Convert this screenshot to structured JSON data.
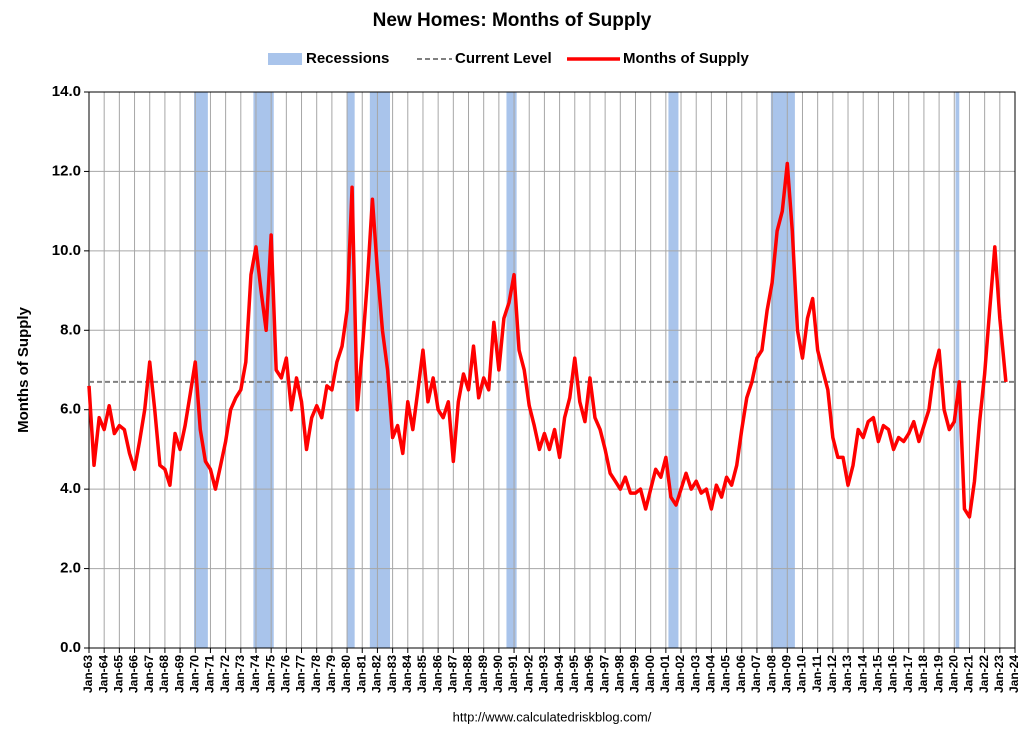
{
  "chart_data": {
    "type": "line",
    "title": "New Homes: Months of Supply",
    "y_label": "Months of Supply",
    "source": "http://www.calculatedriskblog.com/",
    "grid": true,
    "xlim": [
      1963,
      2024
    ],
    "ylim": [
      0,
      14
    ],
    "yticks": [
      {
        "value": 0,
        "label": "0.0"
      },
      {
        "value": 2,
        "label": "2.0"
      },
      {
        "value": 4,
        "label": "4.0"
      },
      {
        "value": 6,
        "label": "6.0"
      },
      {
        "value": 8,
        "label": "8.0"
      },
      {
        "value": 10,
        "label": "10.0"
      },
      {
        "value": 12,
        "label": "12.0"
      },
      {
        "value": 14,
        "label": "14.0"
      }
    ],
    "xticks": [
      {
        "value": 1963,
        "label": "Jan-63"
      },
      {
        "value": 1964,
        "label": "Jan-64"
      },
      {
        "value": 1965,
        "label": "Jan-65"
      },
      {
        "value": 1966,
        "label": "Jan-66"
      },
      {
        "value": 1967,
        "label": "Jan-67"
      },
      {
        "value": 1968,
        "label": "Jan-68"
      },
      {
        "value": 1969,
        "label": "Jan-69"
      },
      {
        "value": 1970,
        "label": "Jan-70"
      },
      {
        "value": 1971,
        "label": "Jan-71"
      },
      {
        "value": 1972,
        "label": "Jan-72"
      },
      {
        "value": 1973,
        "label": "Jan-73"
      },
      {
        "value": 1974,
        "label": "Jan-74"
      },
      {
        "value": 1975,
        "label": "Jan-75"
      },
      {
        "value": 1976,
        "label": "Jan-76"
      },
      {
        "value": 1977,
        "label": "Jan-77"
      },
      {
        "value": 1978,
        "label": "Jan-78"
      },
      {
        "value": 1979,
        "label": "Jan-79"
      },
      {
        "value": 1980,
        "label": "Jan-80"
      },
      {
        "value": 1981,
        "label": "Jan-81"
      },
      {
        "value": 1982,
        "label": "Jan-82"
      },
      {
        "value": 1983,
        "label": "Jan-83"
      },
      {
        "value": 1984,
        "label": "Jan-84"
      },
      {
        "value": 1985,
        "label": "Jan-85"
      },
      {
        "value": 1986,
        "label": "Jan-86"
      },
      {
        "value": 1987,
        "label": "Jan-87"
      },
      {
        "value": 1988,
        "label": "Jan-88"
      },
      {
        "value": 1989,
        "label": "Jan-89"
      },
      {
        "value": 1990,
        "label": "Jan-90"
      },
      {
        "value": 1991,
        "label": "Jan-91"
      },
      {
        "value": 1992,
        "label": "Jan-92"
      },
      {
        "value": 1993,
        "label": "Jan-93"
      },
      {
        "value": 1994,
        "label": "Jan-94"
      },
      {
        "value": 1995,
        "label": "Jan-95"
      },
      {
        "value": 1996,
        "label": "Jan-96"
      },
      {
        "value": 1997,
        "label": "Jan-97"
      },
      {
        "value": 1998,
        "label": "Jan-98"
      },
      {
        "value": 1999,
        "label": "Jan-99"
      },
      {
        "value": 2000,
        "label": "Jan-00"
      },
      {
        "value": 2001,
        "label": "Jan-01"
      },
      {
        "value": 2002,
        "label": "Jan-02"
      },
      {
        "value": 2003,
        "label": "Jan-03"
      },
      {
        "value": 2004,
        "label": "Jan-04"
      },
      {
        "value": 2005,
        "label": "Jan-05"
      },
      {
        "value": 2006,
        "label": "Jan-06"
      },
      {
        "value": 2007,
        "label": "Jan-07"
      },
      {
        "value": 2008,
        "label": "Jan-08"
      },
      {
        "value": 2009,
        "label": "Jan-09"
      },
      {
        "value": 2010,
        "label": "Jan-10"
      },
      {
        "value": 2011,
        "label": "Jan-11"
      },
      {
        "value": 2012,
        "label": "Jan-12"
      },
      {
        "value": 2013,
        "label": "Jan-13"
      },
      {
        "value": 2014,
        "label": "Jan-14"
      },
      {
        "value": 2015,
        "label": "Jan-15"
      },
      {
        "value": 2016,
        "label": "Jan-16"
      },
      {
        "value": 2017,
        "label": "Jan-17"
      },
      {
        "value": 2018,
        "label": "Jan-18"
      },
      {
        "value": 2019,
        "label": "Jan-19"
      },
      {
        "value": 2020,
        "label": "Jan-20"
      },
      {
        "value": 2021,
        "label": "Jan-21"
      },
      {
        "value": 2022,
        "label": "Jan-22"
      },
      {
        "value": 2023,
        "label": "Jan-23"
      },
      {
        "value": 2024,
        "label": "Jan-24"
      }
    ],
    "recessions": {
      "name": "Recessions",
      "color": "#a9c4eb",
      "periods": [
        [
          1969.92,
          1970.83
        ],
        [
          1973.83,
          1975.17
        ],
        [
          1980.0,
          1980.5
        ],
        [
          1981.5,
          1982.83
        ],
        [
          1990.5,
          1991.17
        ],
        [
          2001.17,
          2001.83
        ],
        [
          2007.92,
          2009.5
        ],
        [
          2020.08,
          2020.33
        ]
      ]
    },
    "current_level": {
      "name": "Current Level",
      "value": 6.7,
      "color": "#808080"
    },
    "series": [
      {
        "name": "Months of Supply",
        "color": "#ff0000",
        "x": [
          1963,
          1963.33,
          1963.67,
          1964,
          1964.33,
          1964.67,
          1965,
          1965.33,
          1965.67,
          1966,
          1966.33,
          1966.67,
          1967,
          1967.33,
          1967.67,
          1968,
          1968.33,
          1968.67,
          1969,
          1969.33,
          1969.67,
          1970,
          1970.33,
          1970.67,
          1971,
          1971.33,
          1971.67,
          1972,
          1972.33,
          1972.67,
          1973,
          1973.33,
          1973.67,
          1974,
          1974.33,
          1974.67,
          1975,
          1975.33,
          1975.67,
          1976,
          1976.33,
          1976.67,
          1977,
          1977.33,
          1977.67,
          1978,
          1978.33,
          1978.67,
          1979,
          1979.33,
          1979.67,
          1980,
          1980.33,
          1980.67,
          1981,
          1981.33,
          1981.67,
          1982,
          1982.33,
          1982.67,
          1983,
          1983.33,
          1983.67,
          1984,
          1984.33,
          1984.67,
          1985,
          1985.33,
          1985.67,
          1986,
          1986.33,
          1986.67,
          1987,
          1987.33,
          1987.67,
          1988,
          1988.33,
          1988.67,
          1989,
          1989.33,
          1989.67,
          1990,
          1990.33,
          1990.67,
          1991,
          1991.33,
          1991.67,
          1992,
          1992.33,
          1992.67,
          1993,
          1993.33,
          1993.67,
          1994,
          1994.33,
          1994.67,
          1995,
          1995.33,
          1995.67,
          1996,
          1996.33,
          1996.67,
          1997,
          1997.33,
          1997.67,
          1998,
          1998.33,
          1998.67,
          1999,
          1999.33,
          1999.67,
          2000,
          2000.33,
          2000.67,
          2001,
          2001.33,
          2001.67,
          2002,
          2002.33,
          2002.67,
          2003,
          2003.33,
          2003.67,
          2004,
          2004.33,
          2004.67,
          2005,
          2005.33,
          2005.67,
          2006,
          2006.33,
          2006.67,
          2007,
          2007.33,
          2007.67,
          2008,
          2008.33,
          2008.67,
          2009,
          2009.33,
          2009.67,
          2010,
          2010.33,
          2010.67,
          2011,
          2011.33,
          2011.67,
          2012,
          2012.33,
          2012.67,
          2013,
          2013.33,
          2013.67,
          2014,
          2014.33,
          2014.67,
          2015,
          2015.33,
          2015.67,
          2016,
          2016.33,
          2016.67,
          2017,
          2017.33,
          2017.67,
          2018,
          2018.33,
          2018.67,
          2019,
          2019.33,
          2019.67,
          2020,
          2020.33,
          2020.67,
          2021,
          2021.33,
          2021.67,
          2022,
          2022.33,
          2022.67,
          2023,
          2023.4
        ],
        "values": [
          6.6,
          4.6,
          5.8,
          5.5,
          6.1,
          5.4,
          5.6,
          5.5,
          4.9,
          4.5,
          5.2,
          6.0,
          7.2,
          6.0,
          4.6,
          4.5,
          4.1,
          5.4,
          5.0,
          5.6,
          6.4,
          7.2,
          5.5,
          4.7,
          4.5,
          4.0,
          4.6,
          5.2,
          6.0,
          6.3,
          6.5,
          7.2,
          9.4,
          10.1,
          9.0,
          8.0,
          10.4,
          7.0,
          6.8,
          7.3,
          6.0,
          6.8,
          6.2,
          5.0,
          5.8,
          6.1,
          5.8,
          6.6,
          6.5,
          7.2,
          7.6,
          8.5,
          11.6,
          6.0,
          7.5,
          9.2,
          11.3,
          9.5,
          8.0,
          7.0,
          5.3,
          5.6,
          4.9,
          6.2,
          5.5,
          6.5,
          7.5,
          6.2,
          6.8,
          6.0,
          5.8,
          6.2,
          4.7,
          6.2,
          6.9,
          6.5,
          7.6,
          6.3,
          6.8,
          6.5,
          8.2,
          7.0,
          8.3,
          8.7,
          9.4,
          7.5,
          7.0,
          6.1,
          5.6,
          5.0,
          5.4,
          5.0,
          5.5,
          4.8,
          5.8,
          6.3,
          7.3,
          6.2,
          5.7,
          6.8,
          5.8,
          5.5,
          5.0,
          4.4,
          4.2,
          4.0,
          4.3,
          3.9,
          3.9,
          4.0,
          3.5,
          4.0,
          4.5,
          4.3,
          4.8,
          3.8,
          3.6,
          4.0,
          4.4,
          4.0,
          4.2,
          3.9,
          4.0,
          3.5,
          4.1,
          3.8,
          4.3,
          4.1,
          4.6,
          5.5,
          6.3,
          6.7,
          7.3,
          7.5,
          8.5,
          9.2,
          10.5,
          11.0,
          12.2,
          10.5,
          8.0,
          7.3,
          8.3,
          8.8,
          7.5,
          7.0,
          6.5,
          5.3,
          4.8,
          4.8,
          4.1,
          4.6,
          5.5,
          5.3,
          5.7,
          5.8,
          5.2,
          5.6,
          5.5,
          5.0,
          5.3,
          5.2,
          5.4,
          5.7,
          5.2,
          5.6,
          6.0,
          7.0,
          7.5,
          6.0,
          5.5,
          5.7,
          6.7,
          3.5,
          3.3,
          4.2,
          5.7,
          6.9,
          8.5,
          10.1,
          8.3,
          6.7
        ]
      }
    ]
  }
}
